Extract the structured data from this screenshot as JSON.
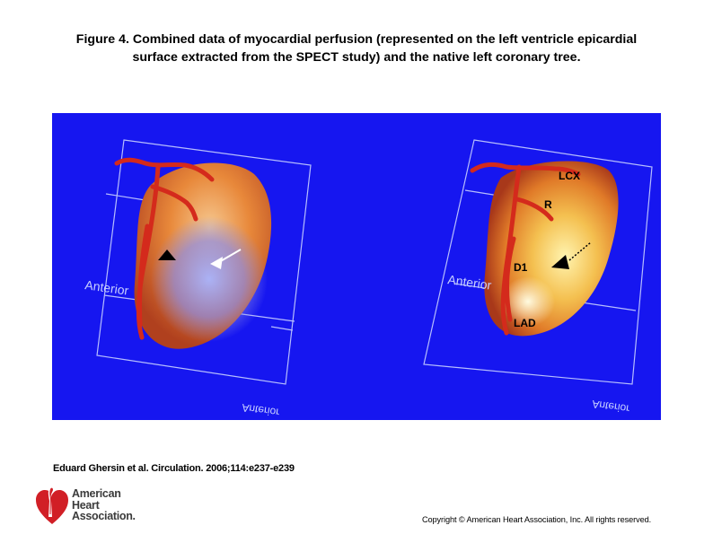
{
  "caption": {
    "line1": "Figure 4. Combined data of myocardial perfusion (represented on the left ventricle epicardial",
    "line2": "surface extracted from the SPECT study) and the native left coronary tree."
  },
  "figure": {
    "background_color": "#1616f0",
    "left_panel": {
      "orientation_label": "Anterior",
      "orientation_label_mirrored": "Anterior"
    },
    "right_panel": {
      "orientation_label": "Anterior",
      "orientation_label_mirrored": "Anterior",
      "vessel_labels": {
        "lcx": "LCX",
        "r": "R",
        "d1": "D1",
        "lad": "LAD"
      }
    }
  },
  "citation": "Eduard Ghersin et al. Circulation. 2006;114:e237-e239",
  "logo": {
    "line1": "American",
    "line2": "Heart",
    "line3": "Association."
  },
  "copyright": "Copyright © American Heart Association, Inc. All rights reserved."
}
